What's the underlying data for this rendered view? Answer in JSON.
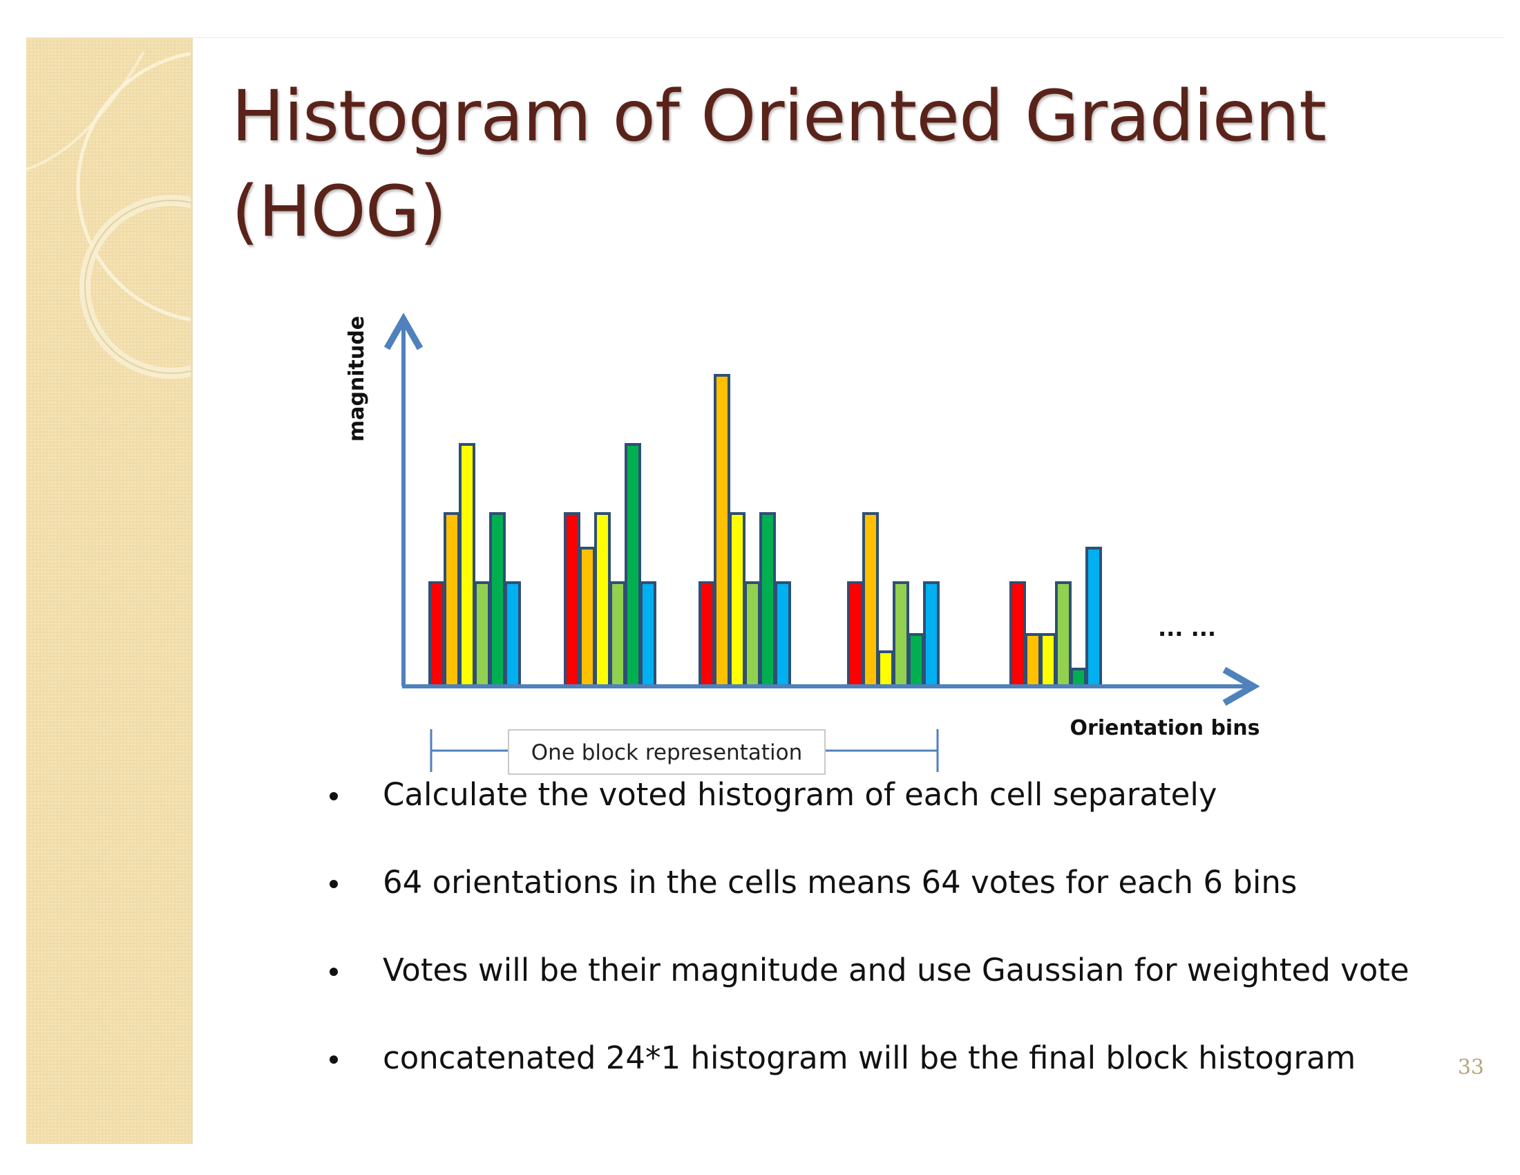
{
  "slide": {
    "title": "Histogram of Oriented Gradient (HOG)",
    "page_number": "33",
    "colors": {
      "title": "#5a231a",
      "sidebar": "#f1dca7",
      "axis": "#4f81bd",
      "bar_border": "#2f4f75"
    }
  },
  "chart_data": {
    "type": "bar",
    "ylabel": "magnitude",
    "xlabel": "Orientation bins",
    "block_label": "One block representation",
    "ellipsis": "... ...",
    "ylim": [
      0,
      10
    ],
    "bin_colors": [
      "#ff0000",
      "#ffc000",
      "#ffff00",
      "#92d050",
      "#00b050",
      "#00b0f0"
    ],
    "cells": [
      {
        "bins": [
          {
            "color": "#ff0000",
            "value": 3
          },
          {
            "color": "#ffc000",
            "value": 5
          },
          {
            "color": "#ffff00",
            "value": 7
          },
          {
            "color": "#92d050",
            "value": 3
          },
          {
            "color": "#00b050",
            "value": 5
          },
          {
            "color": "#00b0f0",
            "value": 3
          }
        ]
      },
      {
        "bins": [
          {
            "color": "#ff0000",
            "value": 5
          },
          {
            "color": "#ffc000",
            "value": 4
          },
          {
            "color": "#ffff00",
            "value": 5
          },
          {
            "color": "#92d050",
            "value": 3
          },
          {
            "color": "#00b050",
            "value": 7
          },
          {
            "color": "#00b0f0",
            "value": 3
          }
        ]
      },
      {
        "bins": [
          {
            "color": "#ff0000",
            "value": 3
          },
          {
            "color": "#ffc000",
            "value": 9
          },
          {
            "color": "#ffff00",
            "value": 5
          },
          {
            "color": "#92d050",
            "value": 3
          },
          {
            "color": "#00b050",
            "value": 5
          },
          {
            "color": "#00b0f0",
            "value": 3
          }
        ]
      },
      {
        "bins": [
          {
            "color": "#ff0000",
            "value": 3
          },
          {
            "color": "#ffc000",
            "value": 5
          },
          {
            "color": "#ffff00",
            "value": 1
          },
          {
            "color": "#92d050",
            "value": 3
          },
          {
            "color": "#00b050",
            "value": 1.5
          },
          {
            "color": "#00b0f0",
            "value": 3
          }
        ]
      },
      {
        "bins": [
          {
            "color": "#ff0000",
            "value": 3
          },
          {
            "color": "#ffc000",
            "value": 1.5
          },
          {
            "color": "#ffff00",
            "value": 1.5
          },
          {
            "color": "#92d050",
            "value": 3
          },
          {
            "color": "#00b050",
            "value": 0.5
          },
          {
            "color": "#00b0f0",
            "value": 4
          }
        ]
      }
    ]
  },
  "bullets": [
    "Calculate the voted histogram of each cell separately",
    "64 orientations in the cells means 64 votes for each 6 bins",
    "Votes will be their magnitude and use Gaussian for weighted vote",
    "concatenated 24*1 histogram will be the final block histogram"
  ]
}
